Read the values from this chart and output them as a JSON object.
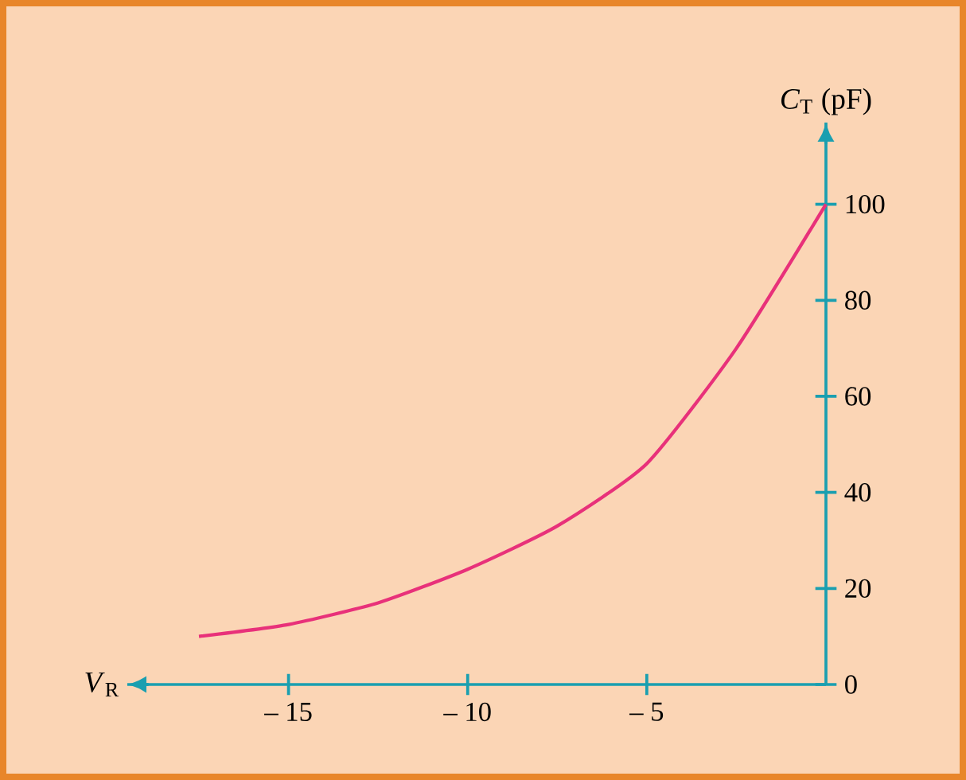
{
  "chart_data": {
    "type": "line",
    "xlabel": "*V*$_{R}$",
    "ylabel": "*C*$_{T}$ (pF)",
    "x": [
      -17.5,
      -15,
      -12.5,
      -10,
      -7.5,
      -5,
      -2.5,
      0
    ],
    "series": [
      {
        "color": "#e8317a",
        "values": [
          10,
          12.5,
          17,
          24,
          33,
          46,
          70,
          100
        ]
      }
    ],
    "xlim": [
      -19.5,
      0
    ],
    "ylim": [
      0,
      117
    ],
    "xticks": [
      {
        "value": -15,
        "label": "– 15"
      },
      {
        "value": -10,
        "label": "– 10"
      },
      {
        "value": -5,
        "label": "– 5"
      }
    ],
    "yticks": [
      0,
      20,
      40,
      60,
      80,
      100
    ]
  }
}
